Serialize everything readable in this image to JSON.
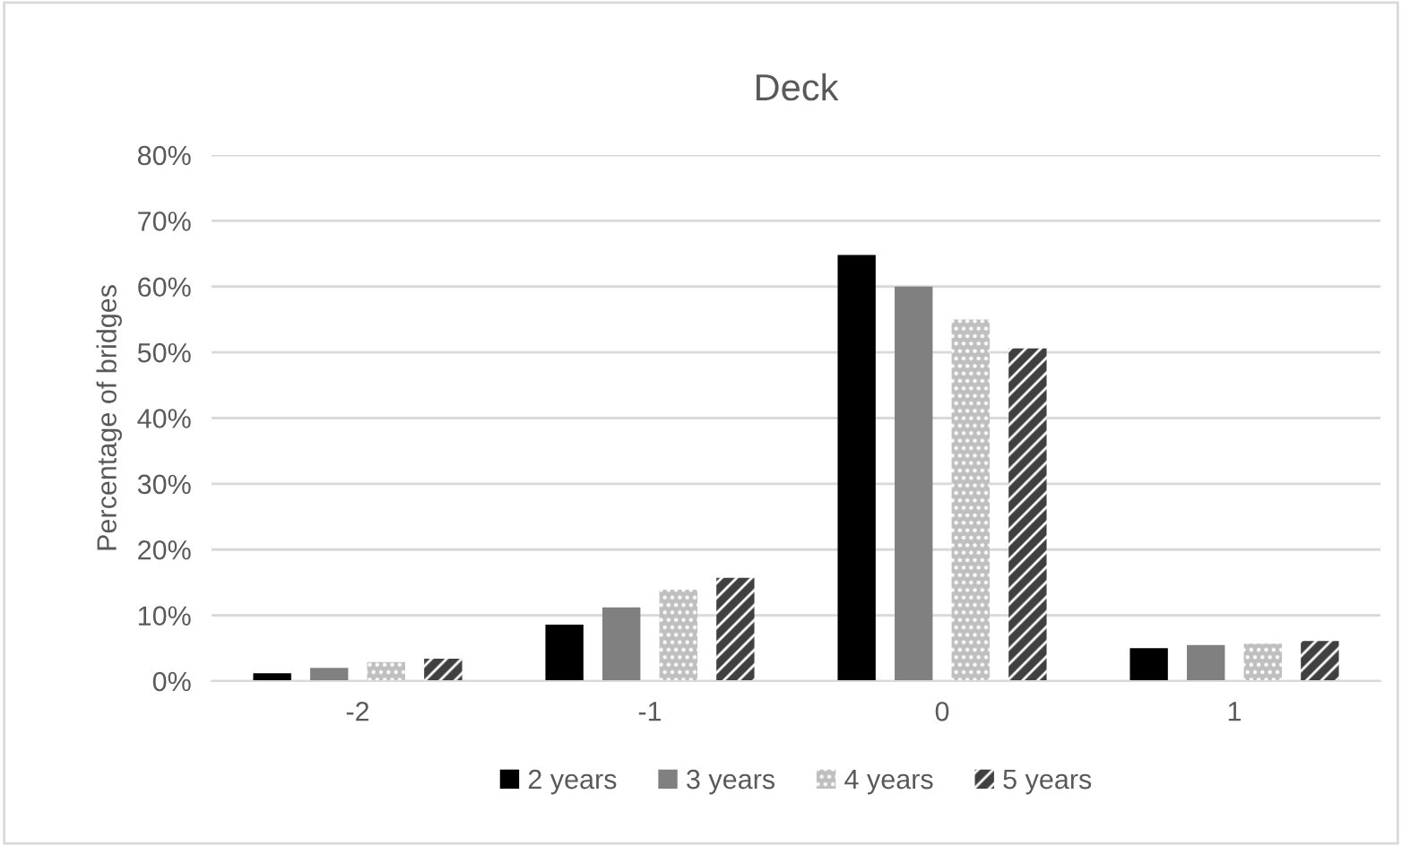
{
  "chart_data": {
    "type": "bar",
    "title": "Deck",
    "ylabel": "Percentage of bridges",
    "categories": [
      "-2",
      "-1",
      "0",
      "1"
    ],
    "series": [
      {
        "name": "2 years",
        "color": "#000000",
        "values": [
          1.2,
          8.6,
          64.8,
          5.0
        ]
      },
      {
        "name": "3 years",
        "color": "#808080",
        "values": [
          2.0,
          11.2,
          60.0,
          5.5
        ]
      },
      {
        "name": "4 years",
        "color": "#bfbfbf",
        "values": [
          2.9,
          13.9,
          55.0,
          5.7
        ]
      },
      {
        "name": "5 years",
        "color": "#404040",
        "values": [
          3.4,
          15.7,
          50.6,
          6.1
        ]
      }
    ],
    "ylim": [
      0,
      80
    ],
    "yticks": [
      {
        "value": 0,
        "label": "0%"
      },
      {
        "value": 10,
        "label": "10%"
      },
      {
        "value": 20,
        "label": "20%"
      },
      {
        "value": 30,
        "label": "30%"
      },
      {
        "value": 40,
        "label": "40%"
      },
      {
        "value": 50,
        "label": "50%"
      },
      {
        "value": 60,
        "label": "60%"
      },
      {
        "value": 70,
        "label": "70%"
      },
      {
        "value": 80,
        "label": "80%"
      }
    ],
    "grid": "y",
    "legend": "bottom"
  }
}
